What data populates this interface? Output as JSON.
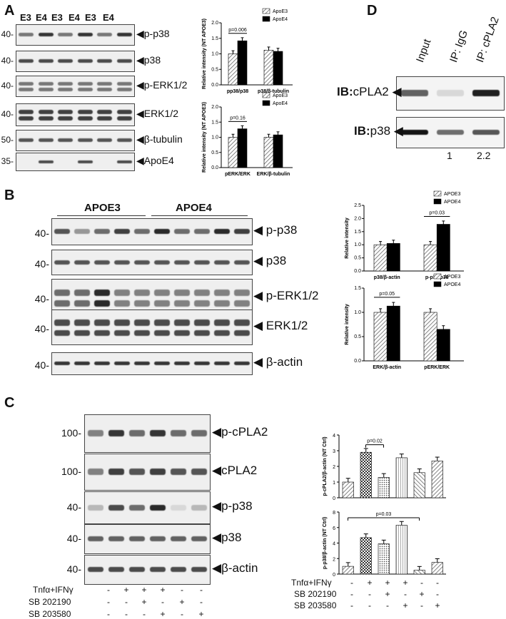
{
  "panelA": {
    "letter": "A",
    "lanes": [
      "E3",
      "E4",
      "E3",
      "E4",
      "E3",
      "E4"
    ],
    "rows": [
      {
        "mw": "40-",
        "label": "p-p38"
      },
      {
        "mw": "40-",
        "label": "p38"
      },
      {
        "mw": "40-",
        "label": "p-ERK1/2"
      },
      {
        "mw": "40-",
        "label": "ERK1/2"
      },
      {
        "mw": "50-",
        "label": "β-tubulin"
      },
      {
        "mw": "35-",
        "label": "ApoE4"
      }
    ],
    "chart1": {
      "ylabel": "Relative intensity (NT APOE3)",
      "pval": "p=0.006",
      "legend": [
        "ApoE3",
        "ApoE4"
      ],
      "categories": [
        "pp38/p38",
        "p38/β-tubulin"
      ],
      "ticks": [
        "0.0",
        "0.5",
        "1.0",
        "1.5",
        "2.0"
      ]
    },
    "chart2": {
      "ylabel": "Relative intensity (NT APOE3)",
      "pval": "p=0.16",
      "legend": [
        "ApoE3",
        "ApoE4"
      ],
      "categories": [
        "pERK/ERK",
        "ERK/β-tubulin"
      ],
      "ticks": [
        "0.0",
        "0.5",
        "1.0",
        "1.5",
        "2.0"
      ]
    }
  },
  "panelB": {
    "letter": "B",
    "groups": [
      "APOE3",
      "APOE4"
    ],
    "rows": [
      {
        "mw": "40-",
        "label": "p-p38"
      },
      {
        "mw": "40-",
        "label": "p38"
      },
      {
        "mw": "40-",
        "label": "p-ERK1/2"
      },
      {
        "mw": "40-",
        "label": "ERK1/2"
      },
      {
        "mw": "40-",
        "label": "β-actin"
      }
    ],
    "chart1": {
      "ylabel": "Relative intensity",
      "pval": "p=0.03",
      "legend": [
        "APOE3",
        "APOE4"
      ],
      "categories": [
        "p38/β-actin",
        "p-p38/p38"
      ],
      "ticks": [
        "0.0",
        "0.5",
        "1.0",
        "1.5",
        "2.0",
        "2.5"
      ]
    },
    "chart2": {
      "ylabel": "Relative intensity",
      "pval": "p=0.05",
      "legend": [
        "APOE3",
        "APOE4"
      ],
      "categories": [
        "ERK/β-actin",
        "pERK/ERK"
      ],
      "ticks": [
        "0.0",
        "0.5",
        "1.0",
        "1.5"
      ]
    }
  },
  "panelC": {
    "letter": "C",
    "rows": [
      {
        "mw": "100-",
        "label": "p-cPLA2"
      },
      {
        "mw": "100-",
        "label": "cPLA2"
      },
      {
        "mw": "40-",
        "label": "p-p38"
      },
      {
        "mw": "40-",
        "label": "p38"
      },
      {
        "mw": "40-",
        "label": "β-actin"
      }
    ],
    "treatments": [
      {
        "name": "Tnfα+IFNγ",
        "signs": [
          "-",
          "+",
          "+",
          "+",
          "-",
          "-"
        ]
      },
      {
        "name": "SB 202190",
        "signs": [
          "-",
          "-",
          "+",
          "-",
          "+",
          "-"
        ]
      },
      {
        "name": "SB 203580",
        "signs": [
          "-",
          "-",
          "-",
          "+",
          "-",
          "+"
        ]
      }
    ],
    "chart1": {
      "ylabel": "p-cPLA2/β-actin (NT Ctrl)",
      "pval": "p=0.02",
      "ticks": [
        "0",
        "1",
        "2",
        "3",
        "4"
      ]
    },
    "chart2": {
      "ylabel": "p-p38/β-actin (NT Ctrl)",
      "pval": "p=0.03",
      "ticks": [
        "0",
        "2",
        "4",
        "6",
        "8"
      ]
    }
  },
  "panelD": {
    "letter": "D",
    "lanes": [
      "Input",
      "IP: IgG",
      "IP: cPLA2"
    ],
    "rows": [
      {
        "prefix": "IB:",
        "label": "cPLA2"
      },
      {
        "prefix": "IB:",
        "label": "p38"
      }
    ],
    "quant": [
      "1",
      "2.2"
    ]
  },
  "chart_data": [
    {
      "type": "bar",
      "panel": "A-top",
      "categories": [
        "pp38/p38",
        "p38/β-tubulin"
      ],
      "series": [
        {
          "name": "ApoE3",
          "values": [
            1.0,
            1.12
          ]
        },
        {
          "name": "ApoE4",
          "values": [
            1.42,
            1.08
          ]
        }
      ],
      "ylim": [
        0,
        2.0
      ]
    },
    {
      "type": "bar",
      "panel": "A-bottom",
      "categories": [
        "pERK/ERK",
        "ERK/β-tubulin"
      ],
      "series": [
        {
          "name": "ApoE3",
          "values": [
            1.0,
            1.0
          ]
        },
        {
          "name": "ApoE4",
          "values": [
            1.28,
            1.08
          ]
        }
      ],
      "ylim": [
        0,
        2.0
      ]
    },
    {
      "type": "bar",
      "panel": "B-top",
      "categories": [
        "p38/β-actin",
        "p-p38/p38"
      ],
      "series": [
        {
          "name": "APOE3",
          "values": [
            1.0,
            1.0
          ]
        },
        {
          "name": "APOE4",
          "values": [
            1.05,
            1.78
          ]
        }
      ],
      "ylim": [
        0,
        2.5
      ]
    },
    {
      "type": "bar",
      "panel": "B-bottom",
      "categories": [
        "ERK/β-actin",
        "pERK/ERK"
      ],
      "series": [
        {
          "name": "APOE3",
          "values": [
            1.0,
            1.0
          ]
        },
        {
          "name": "APOE4",
          "values": [
            1.13,
            0.65
          ]
        }
      ],
      "ylim": [
        0,
        1.5
      ]
    },
    {
      "type": "bar",
      "panel": "C-top",
      "values": [
        1.0,
        2.9,
        1.3,
        2.55,
        1.6,
        2.35
      ],
      "ylim": [
        0,
        4
      ]
    },
    {
      "type": "bar",
      "panel": "C-bottom",
      "values": [
        1.0,
        4.7,
        3.9,
        6.3,
        0.5,
        1.5
      ],
      "ylim": [
        0,
        8
      ]
    }
  ]
}
